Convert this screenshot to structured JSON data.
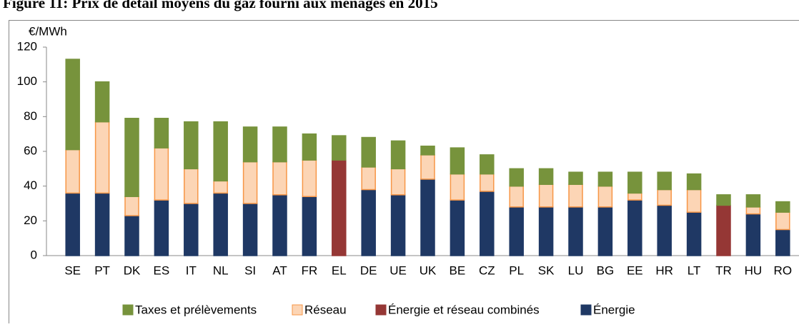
{
  "chart_data": {
    "type": "stacked_bar",
    "title": "Figure 11: Prix de détail moyens du gaz fourni aux ménages en 2015",
    "y_label": "€/MWh",
    "categories": [
      "SE",
      "PT",
      "DK",
      "ES",
      "IT",
      "NL",
      "SI",
      "AT",
      "FR",
      "EL",
      "DE",
      "UE",
      "UK",
      "BE",
      "CZ",
      "PL",
      "SK",
      "LU",
      "BG",
      "EE",
      "HR",
      "LT",
      "TR",
      "HU",
      "RO"
    ],
    "series": [
      {
        "name": "Taxes et prélèvements",
        "color": "#77933c",
        "values": [
          52,
          23,
          45,
          17,
          27,
          34,
          20,
          20,
          15,
          14,
          17,
          16,
          5,
          15,
          11,
          10,
          9,
          7,
          8,
          12,
          10,
          9,
          6,
          7,
          6
        ]
      },
      {
        "name": "Réseau",
        "color": "#fcd5b5",
        "values": [
          25,
          41,
          11,
          30,
          20,
          7,
          24,
          19,
          21,
          null,
          13,
          15,
          14,
          15,
          10,
          12,
          13,
          13,
          12,
          4,
          9,
          13,
          null,
          4,
          10
        ]
      },
      {
        "name": "Énergie et réseau combinés",
        "color": "#953735",
        "values": [
          null,
          null,
          null,
          null,
          null,
          null,
          null,
          null,
          null,
          55,
          null,
          null,
          null,
          null,
          null,
          null,
          null,
          null,
          null,
          null,
          null,
          null,
          29,
          null,
          null
        ]
      },
      {
        "name": "Énergie",
        "color": "#1f3864",
        "values": [
          36,
          36,
          23,
          32,
          30,
          36,
          30,
          35,
          34,
          null,
          38,
          35,
          44,
          32,
          37,
          28,
          28,
          28,
          28,
          32,
          29,
          25,
          null,
          24,
          15
        ]
      }
    ],
    "ylim": [
      0,
      120
    ],
    "yticks": [
      0,
      20,
      40,
      60,
      80,
      100,
      120
    ],
    "grid": false,
    "legend": "bottom"
  }
}
